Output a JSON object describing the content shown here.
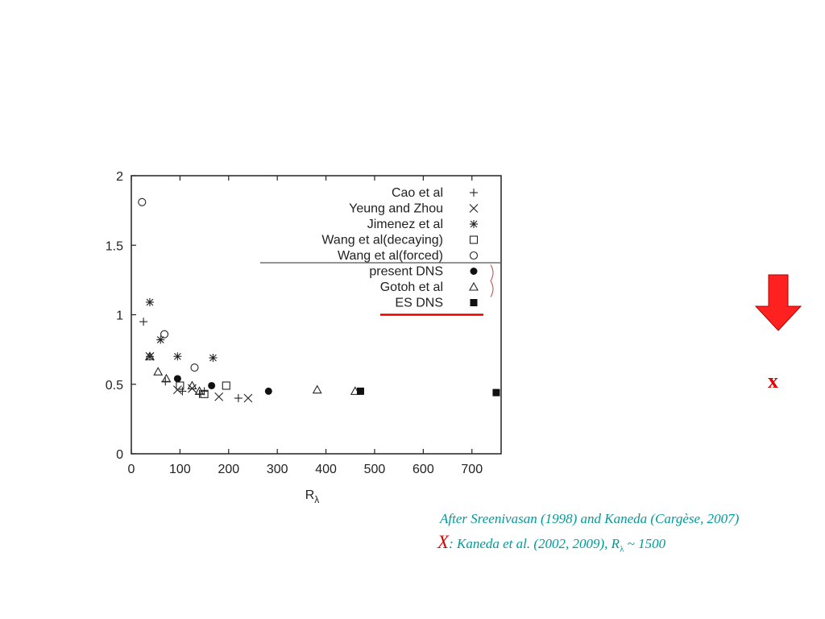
{
  "colors": {
    "caption": "#009a9a",
    "accent_red": "#e00000",
    "arrow_fill": "#ff2020"
  },
  "side_marker": "x",
  "caption": {
    "line1": "After Sreenivasan (1998) and Kaneda (Cargèse, 2007)",
    "line2_prefix": "X",
    "line2_text": ": Kaneda et al. (2002, 2009), R",
    "line2_sub": "λ",
    "line2_suffix": " ~ 1500"
  },
  "chart_data": {
    "type": "scatter",
    "title": "",
    "xlabel": "R",
    "xlabel_sub": "λ",
    "ylabel": "",
    "xlim": [
      0,
      760
    ],
    "ylim": [
      0,
      2
    ],
    "xticks": [
      "0",
      "100",
      "200",
      "300",
      "400",
      "500",
      "600",
      "700"
    ],
    "xtick_values": [
      0,
      100,
      200,
      300,
      400,
      500,
      600,
      700
    ],
    "yticks": [
      "0",
      "0.5",
      "1",
      "1.5",
      "2"
    ],
    "ytick_values": [
      0,
      0.5,
      1,
      1.5,
      2
    ],
    "grid": false,
    "legend_position": "top-right",
    "series": [
      {
        "name": "Cao et al",
        "marker": "plus",
        "points": [
          [
            25,
            0.95
          ],
          [
            70,
            0.52
          ],
          [
            105,
            0.45
          ],
          [
            140,
            0.43
          ],
          [
            150,
            0.45
          ],
          [
            220,
            0.4
          ]
        ]
      },
      {
        "name": "Yeung and Zhou",
        "marker": "x",
        "points": [
          [
            38,
            0.7
          ],
          [
            95,
            0.46
          ],
          [
            125,
            0.47
          ],
          [
            180,
            0.41
          ],
          [
            240,
            0.4
          ]
        ]
      },
      {
        "name": "Jimenez et al",
        "marker": "star",
        "points": [
          [
            38,
            1.09
          ],
          [
            38,
            0.7
          ],
          [
            60,
            0.82
          ],
          [
            95,
            0.7
          ],
          [
            168,
            0.69
          ]
        ]
      },
      {
        "name": "Wang et al(decaying)",
        "marker": "square",
        "points": [
          [
            100,
            0.49
          ],
          [
            150,
            0.43
          ],
          [
            195,
            0.49
          ]
        ]
      },
      {
        "name": "Wang et al(forced)",
        "marker": "circle",
        "points": [
          [
            22,
            1.81
          ],
          [
            68,
            0.86
          ],
          [
            130,
            0.62
          ]
        ]
      },
      {
        "name": "present DNS",
        "marker": "filled-circle",
        "points": [
          [
            95,
            0.54
          ],
          [
            165,
            0.49
          ],
          [
            282,
            0.45
          ]
        ]
      },
      {
        "name": "Gotoh et al",
        "marker": "triangle",
        "points": [
          [
            38,
            0.7
          ],
          [
            55,
            0.59
          ],
          [
            72,
            0.54
          ],
          [
            125,
            0.49
          ],
          [
            140,
            0.45
          ],
          [
            382,
            0.46
          ],
          [
            460,
            0.45
          ]
        ]
      },
      {
        "name": "ES DNS",
        "marker": "filled-square",
        "points": [
          [
            471,
            0.45
          ],
          [
            750,
            0.44
          ]
        ]
      }
    ]
  }
}
